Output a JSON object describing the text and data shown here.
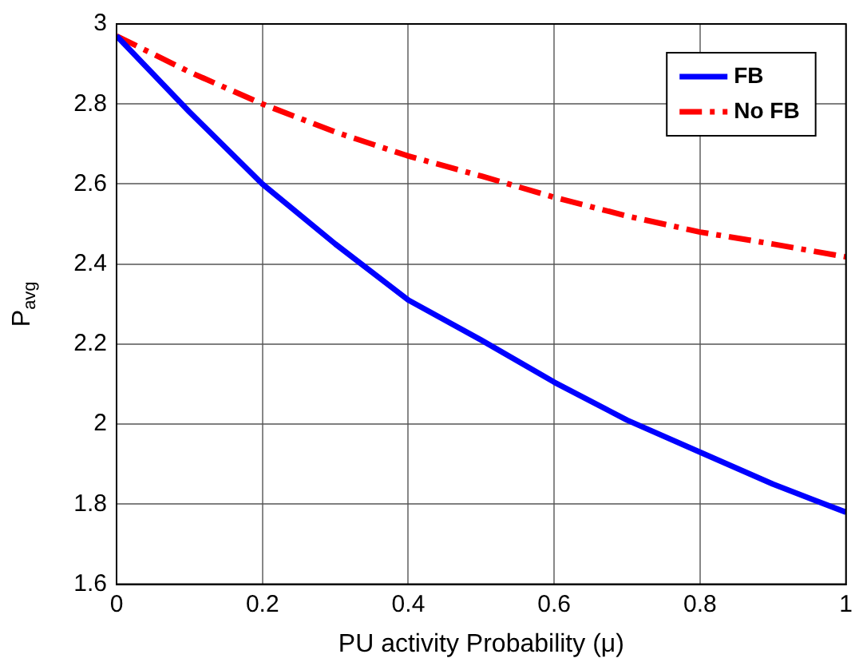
{
  "chart_data": {
    "type": "line",
    "xlabel": "PU activity Probability (μ)",
    "ylabel": "P$_{avg}$",
    "x": [
      0,
      0.1,
      0.2,
      0.3,
      0.4,
      0.5,
      0.6,
      0.7,
      0.8,
      0.9,
      1
    ],
    "series": [
      {
        "name": "FB",
        "color": "#0000ff",
        "line_style": "solid",
        "values": [
          2.97,
          2.78,
          2.6,
          2.45,
          2.31,
          2.21,
          2.105,
          2.01,
          1.93,
          1.85,
          1.78
        ]
      },
      {
        "name": "No FB",
        "color": "#ff0000",
        "line_style": "dashed",
        "values": [
          2.97,
          2.88,
          2.8,
          2.73,
          2.67,
          2.62,
          2.567,
          2.52,
          2.48,
          2.45,
          2.418
        ]
      }
    ],
    "xlim": [
      0,
      1
    ],
    "xticks": [
      0,
      0.2,
      0.4,
      0.6,
      0.8,
      1
    ],
    "ylim": [
      1.6,
      3
    ],
    "yticks": [
      1.6,
      1.8,
      2,
      2.2,
      2.4,
      2.6,
      2.8,
      3
    ],
    "grid": true,
    "legend": "top right",
    "marker": "none"
  }
}
